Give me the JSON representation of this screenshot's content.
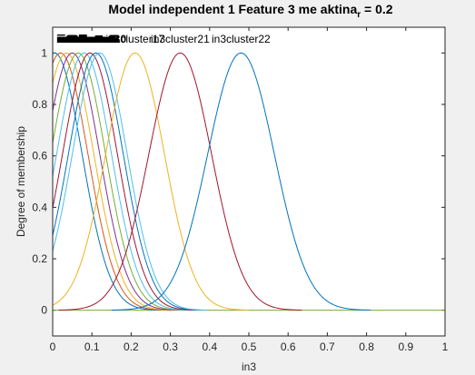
{
  "chart_data": {
    "type": "line",
    "title_main": "Model independent 1 Feature 3 me aktina",
    "title_sub": "r",
    "title_tail": " = 0.2",
    "xlabel": "in3",
    "ylabel": "Degree of membership",
    "xlim": [
      0,
      1
    ],
    "ylim": [
      -0.1,
      1.1
    ],
    "xticks": [
      "0",
      "0.1",
      "0.2",
      "0.3",
      "0.4",
      "0.5",
      "0.6",
      "0.7",
      "0.8",
      "0.9",
      "1"
    ],
    "yticks": [
      "0",
      "0.2",
      "0.4",
      "0.6",
      "0.8",
      "1"
    ],
    "grid": false,
    "curve_shape": "gaussian",
    "series": [
      {
        "name": "in3cluster1",
        "center": 0.005,
        "sigma": 0.07,
        "color": "#0072bd"
      },
      {
        "name": "in3cluster2",
        "center": 0.02,
        "sigma": 0.07,
        "color": "#d95319"
      },
      {
        "name": "in3cluster3",
        "center": 0.035,
        "sigma": 0.07,
        "color": "#edb120"
      },
      {
        "name": "in3cluster4",
        "center": 0.05,
        "sigma": 0.07,
        "color": "#7e2f8e"
      },
      {
        "name": "in3cluster5",
        "center": 0.065,
        "sigma": 0.07,
        "color": "#77ac30"
      },
      {
        "name": "in3cluster6",
        "center": 0.08,
        "sigma": 0.07,
        "color": "#4dbeee"
      },
      {
        "name": "in3cluster7",
        "center": 0.095,
        "sigma": 0.07,
        "color": "#a2142f"
      },
      {
        "name": "in3cluster8",
        "center": 0.11,
        "sigma": 0.07,
        "color": "#0072bd"
      },
      {
        "name": "in3cluster10",
        "center": 0.12,
        "sigma": 0.07,
        "color": "#4dbeee"
      },
      {
        "name": "in3cluster17",
        "center": 0.21,
        "sigma": 0.075,
        "color": "#edb120"
      },
      {
        "name": "in3cluster21",
        "center": 0.325,
        "sigma": 0.08,
        "color": "#a2142f"
      },
      {
        "name": "in3cluster22",
        "center": 0.48,
        "sigma": 0.085,
        "color": "#0072bd"
      }
    ],
    "baseline_color": "#77ac30"
  }
}
